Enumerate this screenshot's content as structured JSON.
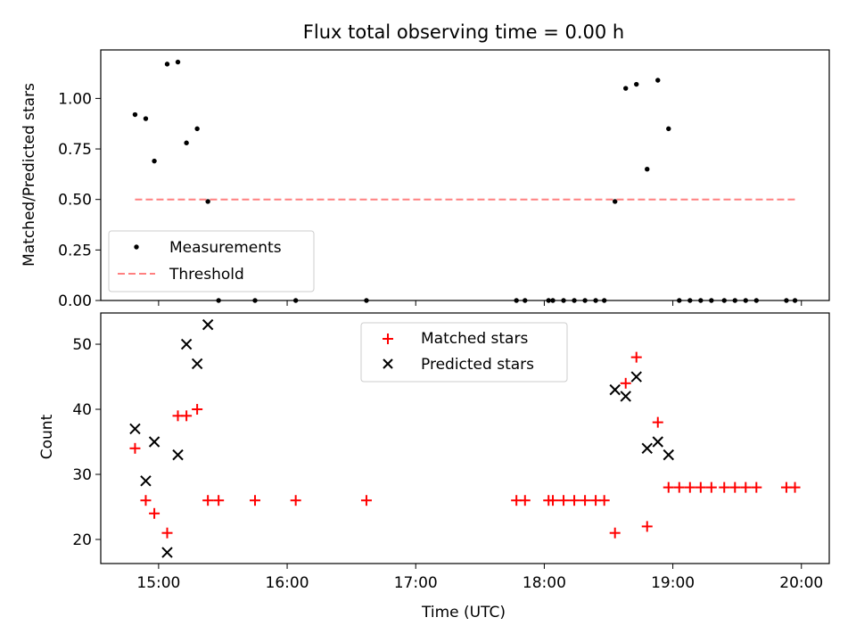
{
  "chart_data": [
    {
      "type": "scatter",
      "title": "Flux total observing time = 0.00 h",
      "xlabel": "",
      "ylabel": "Matched/Predicted stars",
      "xlim": [
        "14:33",
        "20:13"
      ],
      "ylim": [
        0,
        1.24
      ],
      "x_ticks": [
        "15:00",
        "16:00",
        "17:00",
        "18:00",
        "19:00",
        "20:00"
      ],
      "x_tick_labels_visible": false,
      "y_ticks": [
        0.0,
        0.25,
        0.5,
        0.75,
        1.0
      ],
      "y_tick_labels": [
        "0.00",
        "0.25",
        "0.50",
        "0.75",
        "1.00"
      ],
      "grid": false,
      "legend": {
        "position": "lower-left",
        "entries": [
          {
            "label": "Measurements",
            "marker": "dot",
            "color": "#000000"
          },
          {
            "label": "Threshold",
            "marker": "dashed-line",
            "color": "#ff8080"
          }
        ]
      },
      "series": [
        {
          "name": "Measurements",
          "marker": "dot",
          "color": "#000000",
          "points": [
            [
              "14:49",
              0.92
            ],
            [
              "14:54",
              0.9
            ],
            [
              "14:58",
              0.69
            ],
            [
              "15:04",
              1.17
            ],
            [
              "15:09",
              1.18
            ],
            [
              "15:13",
              0.78
            ],
            [
              "15:18",
              0.85
            ],
            [
              "15:23",
              0.49
            ],
            [
              "15:28",
              0.0
            ],
            [
              "15:45",
              0.0
            ],
            [
              "16:04",
              0.0
            ],
            [
              "16:37",
              0.0
            ],
            [
              "17:47",
              0.0
            ],
            [
              "17:51",
              0.0
            ],
            [
              "18:02",
              0.0
            ],
            [
              "18:04",
              0.0
            ],
            [
              "18:09",
              0.0
            ],
            [
              "18:14",
              0.0
            ],
            [
              "18:19",
              0.0
            ],
            [
              "18:24",
              0.0
            ],
            [
              "18:28",
              0.0
            ],
            [
              "18:33",
              0.49
            ],
            [
              "18:38",
              1.05
            ],
            [
              "18:43",
              1.07
            ],
            [
              "18:48",
              0.65
            ],
            [
              "18:53",
              1.09
            ],
            [
              "18:58",
              0.85
            ],
            [
              "19:03",
              0.0
            ],
            [
              "19:08",
              0.0
            ],
            [
              "19:13",
              0.0
            ],
            [
              "19:18",
              0.0
            ],
            [
              "19:24",
              0.0
            ],
            [
              "19:29",
              0.0
            ],
            [
              "19:34",
              0.0
            ],
            [
              "19:39",
              0.0
            ],
            [
              "19:53",
              0.0
            ],
            [
              "19:57",
              0.0
            ]
          ]
        },
        {
          "name": "Threshold",
          "type": "line",
          "style": "dashed",
          "color": "#ff8080",
          "points": [
            [
              "14:49",
              0.5
            ],
            [
              "19:57",
              0.5
            ]
          ]
        }
      ]
    },
    {
      "type": "scatter",
      "title": "",
      "xlabel": "Time (UTC)",
      "ylabel": "Count",
      "xlim": [
        "14:33",
        "20:13"
      ],
      "ylim": [
        16.3,
        54.8
      ],
      "x_ticks": [
        "15:00",
        "16:00",
        "17:00",
        "18:00",
        "19:00",
        "20:00"
      ],
      "x_tick_labels": [
        "15:00",
        "16:00",
        "17:00",
        "18:00",
        "19:00",
        "20:00"
      ],
      "y_ticks": [
        20,
        30,
        40,
        50
      ],
      "y_tick_labels": [
        "20",
        "30",
        "40",
        "50"
      ],
      "grid": false,
      "legend": {
        "position": "top-center",
        "entries": [
          {
            "label": "Matched stars",
            "marker": "plus",
            "color": "#ff0000"
          },
          {
            "label": "Predicted stars",
            "marker": "x",
            "color": "#000000"
          }
        ]
      },
      "series": [
        {
          "name": "Matched stars",
          "marker": "plus",
          "color": "#ff0000",
          "points": [
            [
              "14:49",
              34
            ],
            [
              "14:54",
              26
            ],
            [
              "14:58",
              24
            ],
            [
              "15:04",
              21
            ],
            [
              "15:09",
              39
            ],
            [
              "15:13",
              39
            ],
            [
              "15:18",
              40
            ],
            [
              "15:23",
              26
            ],
            [
              "15:28",
              26
            ],
            [
              "15:45",
              26
            ],
            [
              "16:04",
              26
            ],
            [
              "16:37",
              26
            ],
            [
              "17:47",
              26
            ],
            [
              "17:51",
              26
            ],
            [
              "18:02",
              26
            ],
            [
              "18:04",
              26
            ],
            [
              "18:09",
              26
            ],
            [
              "18:14",
              26
            ],
            [
              "18:19",
              26
            ],
            [
              "18:24",
              26
            ],
            [
              "18:28",
              26
            ],
            [
              "18:33",
              21
            ],
            [
              "18:38",
              44
            ],
            [
              "18:43",
              48
            ],
            [
              "18:48",
              22
            ],
            [
              "18:53",
              38
            ],
            [
              "18:58",
              28
            ],
            [
              "19:03",
              28
            ],
            [
              "19:08",
              28
            ],
            [
              "19:13",
              28
            ],
            [
              "19:18",
              28
            ],
            [
              "19:24",
              28
            ],
            [
              "19:29",
              28
            ],
            [
              "19:34",
              28
            ],
            [
              "19:39",
              28
            ],
            [
              "19:53",
              28
            ],
            [
              "19:57",
              28
            ]
          ]
        },
        {
          "name": "Predicted stars",
          "marker": "x",
          "color": "#000000",
          "points": [
            [
              "14:49",
              37
            ],
            [
              "14:54",
              29
            ],
            [
              "14:58",
              35
            ],
            [
              "15:04",
              18
            ],
            [
              "15:09",
              33
            ],
            [
              "15:13",
              50
            ],
            [
              "15:18",
              47
            ],
            [
              "15:23",
              53
            ],
            [
              "18:33",
              43
            ],
            [
              "18:38",
              42
            ],
            [
              "18:43",
              45
            ],
            [
              "18:48",
              34
            ],
            [
              "18:53",
              35
            ],
            [
              "18:58",
              33
            ]
          ]
        }
      ]
    }
  ]
}
